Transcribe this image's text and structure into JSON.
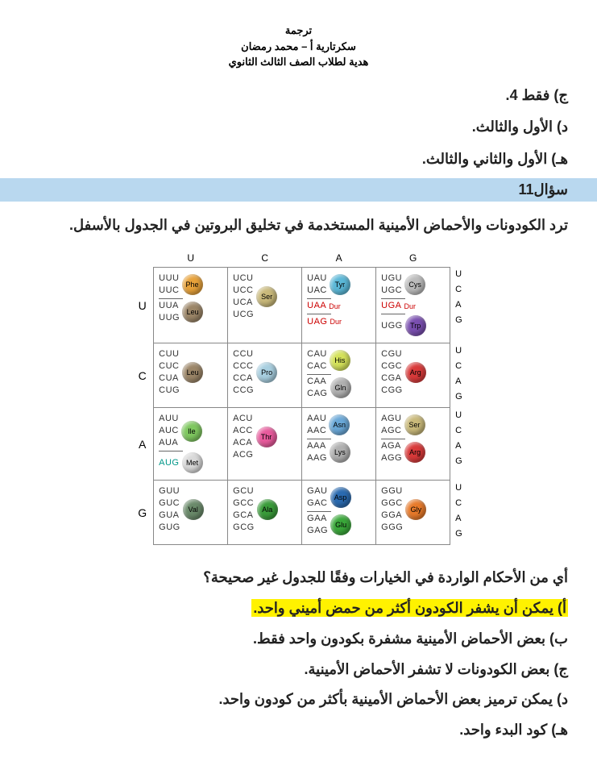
{
  "header": {
    "line1": "ترجمة",
    "line2": "سكرتارية أ – محمد رمضان",
    "line3": "هدية لطلاب الصف الثالث الثانوي"
  },
  "prev_options": {
    "c": "ج) فقط 4.",
    "d": "د) الأول والثالث.",
    "e": "هـ) الأول والثاني والثالث."
  },
  "question_bar": "سؤال11",
  "question_text": "ترد الكودونات والأحماض الأمينية المستخدمة في تخليق البروتين في الجدول بالأسفل.",
  "col_headers": [
    "U",
    "C",
    "A",
    "G"
  ],
  "row_headers": [
    "U",
    "C",
    "A",
    "G"
  ],
  "third_letters": [
    "U",
    "C",
    "A",
    "G"
  ],
  "amino_colors": {
    "Phe": "#e8a23a",
    "Leu": "#9c8668",
    "Ser": "#c9b97a",
    "Tyr": "#5bb8d8",
    "Cys": "#bcbcbc",
    "Trp": "#7a4fb0",
    "Pro": "#a8cfe0",
    "His": "#d4e25a",
    "Gln": "#b0b0b0",
    "Arg": "#d93a3a",
    "Ile": "#7fc860",
    "Met": "#d9d9d9",
    "Thr": "#e85a9c",
    "Asn": "#6aa8d8",
    "Lys": "#b0b0b0",
    "Val": "#6a8a6a",
    "Ala": "#3a9c3a",
    "Asp": "#2a6ab0",
    "Glu": "#3aa83a",
    "Gly": "#e87a2a",
    "Dur": "#cc0000"
  },
  "cells": {
    "UU": [
      {
        "codons": [
          "UUU",
          "UUC"
        ],
        "aa": "Phe"
      },
      {
        "codons": [
          "UUA",
          "UUG"
        ],
        "aa": "Leu"
      }
    ],
    "UC": [
      {
        "codons": [
          "UCU",
          "UCC",
          "UCA",
          "UCG"
        ],
        "aa": "Ser"
      }
    ],
    "UA": [
      {
        "codons": [
          "UAU",
          "UAC"
        ],
        "aa": "Tyr"
      },
      {
        "codons": [
          "UAA"
        ],
        "label": "Dur",
        "red": true
      },
      {
        "codons": [
          "UAG"
        ],
        "label": "Dur",
        "red": true
      }
    ],
    "UG": [
      {
        "codons": [
          "UGU",
          "UGC"
        ],
        "aa": "Cys"
      },
      {
        "codons": [
          "UGA"
        ],
        "label": "Dur",
        "red": true
      },
      {
        "codons": [
          "UGG"
        ],
        "aa": "Trp"
      }
    ],
    "CU": [
      {
        "codons": [
          "CUU",
          "CUC",
          "CUA",
          "CUG"
        ],
        "aa": "Leu"
      }
    ],
    "CC": [
      {
        "codons": [
          "CCU",
          "CCC",
          "CCA",
          "CCG"
        ],
        "aa": "Pro"
      }
    ],
    "CA": [
      {
        "codons": [
          "CAU",
          "CAC"
        ],
        "aa": "His"
      },
      {
        "codons": [
          "CAA",
          "CAG"
        ],
        "aa": "Gln"
      }
    ],
    "CG": [
      {
        "codons": [
          "CGU",
          "CGC",
          "CGA",
          "CGG"
        ],
        "aa": "Arg"
      }
    ],
    "AU": [
      {
        "codons": [
          "AUU",
          "AUC",
          "AUA"
        ],
        "aa": "Ile"
      },
      {
        "codons": [
          "AUG"
        ],
        "aa": "Met",
        "teal": true
      }
    ],
    "AC": [
      {
        "codons": [
          "ACU",
          "ACC",
          "ACA",
          "ACG"
        ],
        "aa": "Thr"
      }
    ],
    "AA": [
      {
        "codons": [
          "AAU",
          "AAC"
        ],
        "aa": "Asn"
      },
      {
        "codons": [
          "AAA",
          "AAG"
        ],
        "aa": "Lys"
      }
    ],
    "AG": [
      {
        "codons": [
          "AGU",
          "AGC"
        ],
        "aa": "Ser"
      },
      {
        "codons": [
          "AGA",
          "AGG"
        ],
        "aa": "Arg"
      }
    ],
    "GU": [
      {
        "codons": [
          "GUU",
          "GUC",
          "GUA",
          "GUG"
        ],
        "aa": "Val"
      }
    ],
    "GC": [
      {
        "codons": [
          "GCU",
          "GCC",
          "GCA",
          "GCG"
        ],
        "aa": "Ala"
      }
    ],
    "GA": [
      {
        "codons": [
          "GAU",
          "GAC"
        ],
        "aa": "Asp"
      },
      {
        "codons": [
          "GAA",
          "GAG"
        ],
        "aa": "Glu"
      }
    ],
    "GG": [
      {
        "codons": [
          "GGU",
          "GGC",
          "GGA",
          "GGG"
        ],
        "aa": "Gly"
      }
    ]
  },
  "sub_question": "أي من الأحكام الواردة في الخيارات وفقًا للجدول غير صحيحة؟",
  "answers": {
    "a": "أ) يمكن أن يشفر الكودون أكثر من حمض أميني واحد.",
    "b": "ب) بعض الأحماض الأمينية مشفرة بكودون واحد فقط.",
    "c": "ج) بعض الكودونات لا تشفر الأحماض الأمينية.",
    "d": "د) يمكن ترميز بعض الأحماض الأمينية بأكثر من كودون واحد.",
    "e": "هـ) كود البدء واحد."
  }
}
